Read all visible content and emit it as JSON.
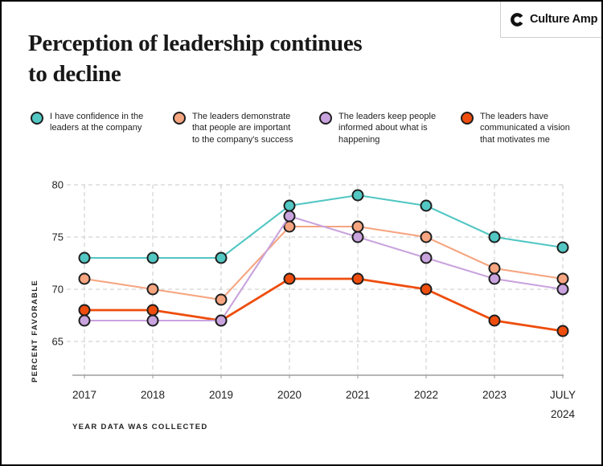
{
  "header": {
    "title": "Perception of leadership continues\nto decline",
    "logo_text": "Culture Amp"
  },
  "legend": {
    "items": [
      {
        "label": "I have confidence in the\nleaders at the company"
      },
      {
        "label": "The leaders demonstrate\nthat people are important\nto the company's success"
      },
      {
        "label": "The leaders keep people\ninformed about what is\nhappening"
      },
      {
        "label": "The leaders have\ncommunicated a vision\nthat motivates me"
      }
    ]
  },
  "chart_data": {
    "type": "line",
    "x": [
      "2017",
      "2018",
      "2019",
      "2020",
      "2021",
      "2022",
      "2023",
      "JULY\n2024"
    ],
    "series": [
      {
        "id": "confidence",
        "name": "I have confidence in the leaders at the company",
        "color": "#52C7C3",
        "emphasis": false,
        "values": [
          73,
          73,
          73,
          78,
          79,
          78,
          75,
          74
        ]
      },
      {
        "id": "demonstrate",
        "name": "The leaders demonstrate that people are important to the company's success",
        "color": "#F6A581",
        "emphasis": false,
        "values": [
          71,
          70,
          69,
          76,
          76,
          75,
          72,
          71
        ]
      },
      {
        "id": "informed",
        "name": "The leaders keep people informed about what is happening",
        "color": "#C9A3DE",
        "emphasis": false,
        "values": [
          67,
          67,
          67,
          77,
          75,
          73,
          71,
          70
        ]
      },
      {
        "id": "vision",
        "name": "The leaders have communicated a vision that motivates me",
        "color": "#EE4D0D",
        "emphasis": true,
        "values": [
          68,
          68,
          67,
          71,
          71,
          70,
          67,
          66
        ]
      }
    ],
    "title": "Perception of leadership continues to decline",
    "xlabel": "YEAR DATA WAS COLLECTED",
    "ylabel": "PERCENT FAVORABLE",
    "yticks": [
      80,
      75,
      70,
      65
    ],
    "ylim": [
      62,
      81
    ],
    "grid": true,
    "legend_position": "top",
    "marker_outline": "#1E1E1E"
  }
}
